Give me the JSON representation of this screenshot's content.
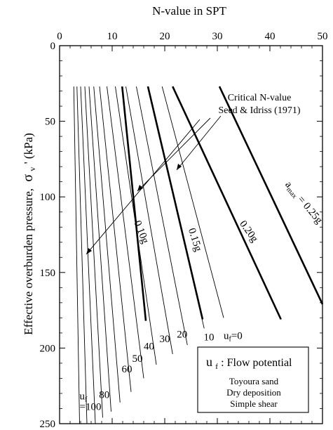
{
  "chart_data": {
    "type": "line",
    "title": "",
    "xlabel": "N-value in SPT",
    "ylabel_main": "Effective overburden pressure,",
    "ylabel_symbol": "σ",
    "ylabel_sub": "v",
    "ylabel_unit": "' (kPa)",
    "x_axis_position": "top",
    "y_axis_inverted": true,
    "xlim": [
      0,
      50
    ],
    "ylim": [
      0,
      250
    ],
    "x_ticks": [
      0,
      10,
      20,
      30,
      40,
      50
    ],
    "y_ticks": [
      0,
      50,
      100,
      150,
      200,
      250
    ],
    "x_tick_labels": [
      "0",
      "10",
      "20",
      "30",
      "40",
      "50"
    ],
    "y_tick_labels": [
      "0",
      "50",
      "100",
      "150",
      "200",
      "250"
    ],
    "grid": false,
    "uf_series": [
      {
        "label": "0",
        "values": [
          [
            19.5,
            27
          ],
          [
            31.2,
            180
          ]
        ]
      },
      {
        "label": "10",
        "values": [
          [
            16.8,
            27
          ],
          [
            27.5,
            187
          ]
        ]
      },
      {
        "label": "20",
        "values": [
          [
            14.6,
            27
          ],
          [
            24.3,
            198
          ]
        ]
      },
      {
        "label": "30",
        "values": [
          [
            12.6,
            27
          ],
          [
            21.5,
            204
          ]
        ]
      },
      {
        "label": "40",
        "values": [
          [
            10.6,
            27
          ],
          [
            18.4,
            211
          ]
        ]
      },
      {
        "label": "50",
        "values": [
          [
            9.0,
            27
          ],
          [
            16.0,
            220
          ]
        ]
      },
      {
        "label": "60",
        "values": [
          [
            7.6,
            27
          ],
          [
            13.6,
            229
          ]
        ]
      },
      {
        "label": "",
        "values": [
          [
            6.5,
            27
          ],
          [
            11.5,
            236
          ]
        ]
      },
      {
        "label": "80",
        "values": [
          [
            5.6,
            27
          ],
          [
            9.8,
            242
          ]
        ]
      },
      {
        "label": "",
        "values": [
          [
            4.8,
            27
          ],
          [
            8.2,
            246
          ]
        ]
      },
      {
        "label": "100",
        "values": [
          [
            4.0,
            27
          ],
          [
            6.8,
            250
          ]
        ]
      },
      {
        "label": "",
        "values": [
          [
            3.3,
            27
          ],
          [
            5.2,
            250
          ]
        ]
      },
      {
        "label": "",
        "values": [
          [
            2.7,
            27
          ],
          [
            3.8,
            250
          ]
        ]
      }
    ],
    "uf_label": "u",
    "uf_label_sub": "f",
    "uf_zero_label": "=0",
    "uf_hundred_label": "=100",
    "critical_series": [
      {
        "label": "0.10g",
        "values": [
          [
            11.9,
            27
          ],
          [
            16.4,
            182
          ]
        ]
      },
      {
        "label": "0.15g",
        "values": [
          [
            16.8,
            27
          ],
          [
            27.2,
            181
          ]
        ]
      },
      {
        "label": "0.20g",
        "values": [
          [
            21.5,
            27
          ],
          [
            42.1,
            181
          ]
        ]
      },
      {
        "label": "0.25g",
        "values": [
          [
            30.4,
            27
          ],
          [
            50.0,
            171
          ]
        ]
      }
    ],
    "amax_label": "a",
    "amax_sub": "max",
    "amax_eq": " = 0.25g",
    "annotation_title": "Critical N-value",
    "annotation_subtitle": "Seed & Idriss (1971)",
    "legend": {
      "symbol": "u",
      "symbol_sub": "f",
      "text": ": Flow potential",
      "lines": [
        "Toyoura sand",
        "Dry deposition",
        "Simple shear"
      ]
    }
  },
  "colors": {
    "ink": "#000000",
    "background": "#ffffff"
  }
}
